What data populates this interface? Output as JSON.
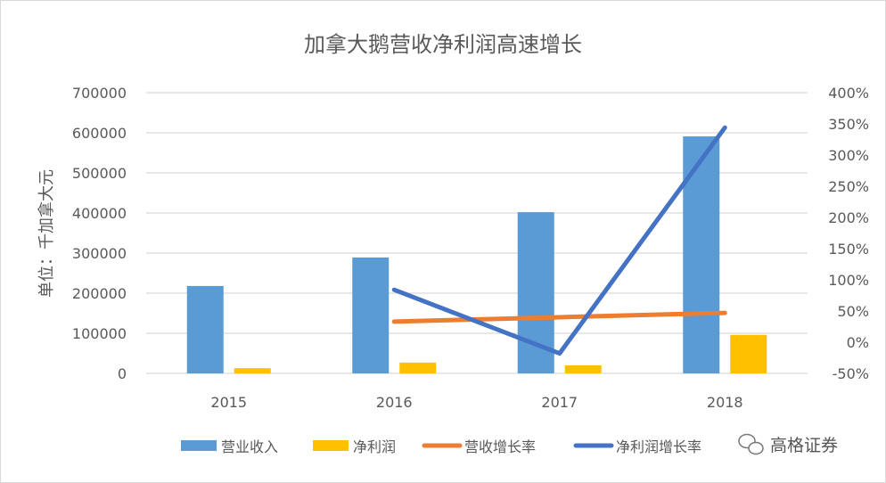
{
  "chart_data": {
    "type": "bar",
    "title": "加拿大鹅营收净利润高速增长",
    "ylabel": "单位：千加拿大元",
    "categories": [
      "2015",
      "2016",
      "2017",
      "2018"
    ],
    "ylim": [
      0,
      700000
    ],
    "y_ticks": [
      "0",
      "100000",
      "200000",
      "300000",
      "400000",
      "500000",
      "600000",
      "700000"
    ],
    "y2lim": [
      -50,
      400
    ],
    "y2_ticks": [
      "-50%",
      "0%",
      "50%",
      "100%",
      "150%",
      "200%",
      "250%",
      "300%",
      "350%",
      "400%"
    ],
    "grid": true,
    "legend_placement": "bottom",
    "series": [
      {
        "name": "营业收入",
        "kind": "bar",
        "axis": "left",
        "color": "#5B9BD5",
        "values": [
          218000,
          289000,
          402000,
          591000
        ]
      },
      {
        "name": "净利润",
        "kind": "bar",
        "axis": "left",
        "color": "#FFC000",
        "values": [
          13000,
          27000,
          20000,
          96000
        ]
      },
      {
        "name": "营收增长率",
        "kind": "line",
        "axis": "right",
        "color": "#ED7D31",
        "values": [
          null,
          33,
          40,
          47
        ]
      },
      {
        "name": "净利润增长率",
        "kind": "line",
        "axis": "right",
        "color": "#4472C4",
        "values": [
          null,
          84,
          -18,
          344
        ]
      }
    ]
  },
  "watermark": "高格证券"
}
